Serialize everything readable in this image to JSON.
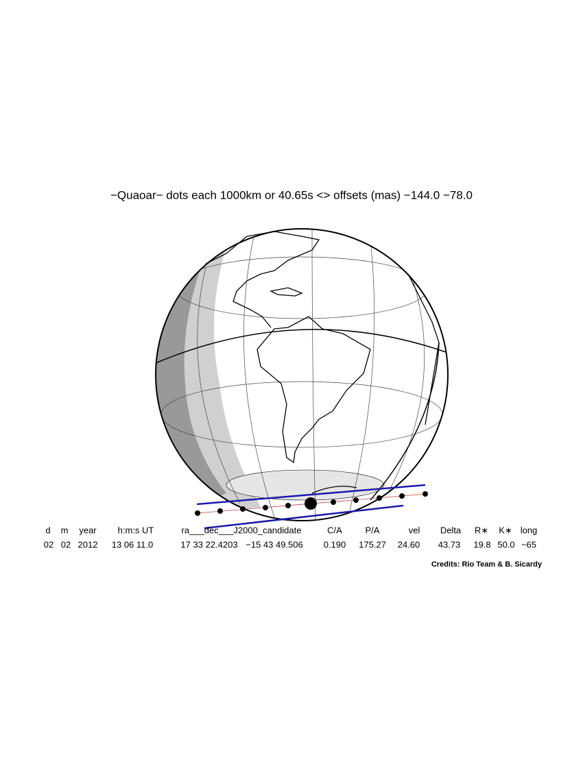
{
  "title": "−Quaoar− dots each 1000km or 40.65s <> offsets (mas) −144.0  −78.0",
  "table": {
    "headers": [
      "d",
      "m",
      "year",
      "h:m:s UT",
      "ra___dec___J2000_candidate",
      "C/A",
      "P/A",
      "vel",
      "Delta",
      "R∗",
      "K∗",
      "long"
    ],
    "values": [
      "02",
      "02",
      "2012",
      "13 06 11.0",
      "17 33 22.4203",
      "−15 43 49.506",
      "0.190",
      "175.27",
      "24.60",
      "43.73",
      "19.8",
      "50.0",
      "−65"
    ]
  },
  "credits": "Credits: Rio Team & B. Sicardy"
}
